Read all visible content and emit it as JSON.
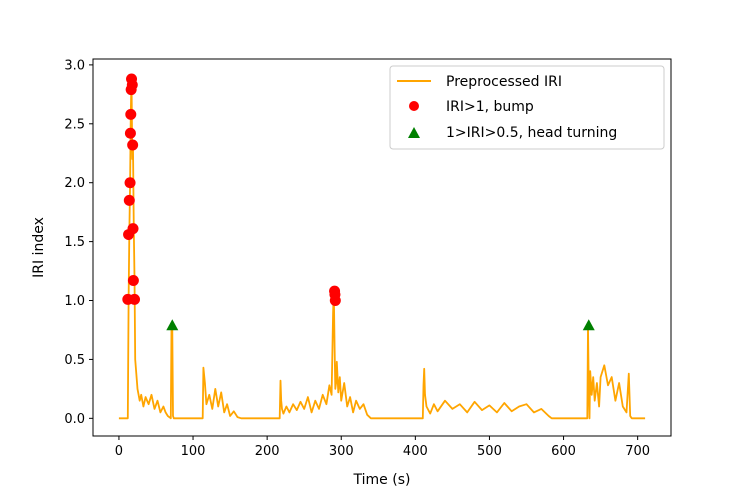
{
  "chart_data": {
    "type": "line",
    "xlabel": "Time (s)",
    "ylabel": "IRI index",
    "xlim": [
      -35,
      745
    ],
    "ylim": [
      -0.15,
      3.05
    ],
    "xticks": [
      0,
      100,
      200,
      300,
      400,
      500,
      600,
      700
    ],
    "yticks": [
      0.0,
      0.5,
      1.0,
      1.5,
      2.0,
      2.5,
      3.0
    ],
    "xtick_labels": [
      "0",
      "100",
      "200",
      "300",
      "400",
      "500",
      "600",
      "700"
    ],
    "ytick_labels": [
      "0.0",
      "0.5",
      "1.0",
      "1.5",
      "2.0",
      "2.5",
      "3.0"
    ],
    "grid": false,
    "legend_position": "top-right",
    "legend": [
      "Preprocessed IRI",
      "IRI>1, bump",
      "1>IRI>0.5, head turning"
    ],
    "colors": {
      "line": "#ffa500",
      "bump": "#ff0000",
      "turn": "#008000"
    },
    "series": [
      {
        "name": "Preprocessed IRI",
        "kind": "line",
        "x": [
          0,
          12,
          13,
          14,
          15,
          16,
          17,
          18,
          19,
          20,
          21,
          22,
          25,
          28,
          30,
          33,
          36,
          40,
          44,
          48,
          52,
          56,
          60,
          63,
          66,
          68,
          70,
          71,
          72,
          73,
          74,
          76,
          80,
          90,
          100,
          110,
          113,
          114,
          116,
          118,
          122,
          126,
          130,
          134,
          138,
          142,
          146,
          150,
          155,
          160,
          165,
          170,
          200,
          217,
          218,
          219,
          220,
          222,
          226,
          230,
          235,
          240,
          245,
          250,
          255,
          260,
          265,
          270,
          275,
          280,
          284,
          287,
          289,
          290,
          291,
          292,
          293,
          294,
          296,
          298,
          300,
          304,
          308,
          312,
          316,
          320,
          325,
          330,
          335,
          340,
          345,
          360,
          380,
          400,
          410,
          411,
          412,
          413,
          415,
          420,
          425,
          430,
          440,
          450,
          460,
          470,
          480,
          490,
          500,
          510,
          520,
          530,
          540,
          550,
          560,
          570,
          580,
          584,
          585,
          600,
          620,
          630,
          632,
          633,
          634,
          635,
          636,
          638,
          640,
          642,
          645,
          648,
          650,
          655,
          660,
          665,
          670,
          675,
          680,
          685,
          688,
          690,
          692,
          694,
          696,
          700,
          710
        ],
        "y": [
          0.0,
          0.0,
          1.0,
          1.55,
          2.0,
          2.6,
          2.88,
          2.2,
          2.3,
          1.6,
          1.2,
          0.5,
          0.25,
          0.15,
          0.2,
          0.1,
          0.18,
          0.12,
          0.2,
          0.08,
          0.15,
          0.05,
          0.1,
          0.05,
          0.02,
          0.01,
          0.0,
          0.78,
          0.75,
          0.02,
          0.0,
          0.0,
          0.0,
          0.0,
          0.0,
          0.0,
          0.0,
          0.43,
          0.3,
          0.12,
          0.2,
          0.08,
          0.25,
          0.1,
          0.22,
          0.05,
          0.12,
          0.02,
          0.06,
          0.01,
          0.0,
          0.0,
          0.0,
          0.0,
          0.32,
          0.15,
          0.08,
          0.04,
          0.1,
          0.05,
          0.12,
          0.07,
          0.14,
          0.08,
          0.18,
          0.05,
          0.15,
          0.08,
          0.2,
          0.12,
          0.28,
          0.2,
          0.9,
          1.08,
          0.6,
          0.25,
          0.3,
          0.48,
          0.22,
          0.35,
          0.15,
          0.3,
          0.1,
          0.18,
          0.05,
          0.15,
          0.08,
          0.12,
          0.03,
          0.0,
          0.0,
          0.0,
          0.0,
          0.0,
          0.0,
          0.28,
          0.42,
          0.2,
          0.1,
          0.04,
          0.12,
          0.06,
          0.15,
          0.08,
          0.12,
          0.05,
          0.14,
          0.07,
          0.11,
          0.05,
          0.13,
          0.06,
          0.1,
          0.12,
          0.05,
          0.08,
          0.02,
          0.0,
          0.0,
          0.0,
          0.0,
          0.0,
          0.0,
          0.78,
          0.3,
          0.0,
          0.4,
          0.2,
          0.35,
          0.15,
          0.3,
          0.1,
          0.35,
          0.45,
          0.28,
          0.35,
          0.15,
          0.3,
          0.1,
          0.05,
          0.38,
          0.02,
          0.0,
          0.0,
          0.0,
          0.0,
          0.0
        ]
      },
      {
        "name": "IRI>1, bump",
        "kind": "marker",
        "marker": "circle",
        "x": [
          12,
          13,
          14,
          15,
          15.5,
          16,
          16.5,
          17,
          18,
          18.5,
          19,
          19.5,
          21,
          291,
          291.5,
          292
        ],
        "y": [
          1.01,
          1.56,
          1.85,
          2.0,
          2.42,
          2.58,
          2.79,
          2.88,
          2.83,
          2.32,
          1.61,
          1.17,
          1.01,
          1.08,
          1.05,
          1.0
        ]
      },
      {
        "name": "1>IRI>0.5, head turning",
        "kind": "marker",
        "marker": "triangle",
        "x": [
          72,
          634
        ],
        "y": [
          0.79,
          0.79
        ]
      }
    ]
  }
}
